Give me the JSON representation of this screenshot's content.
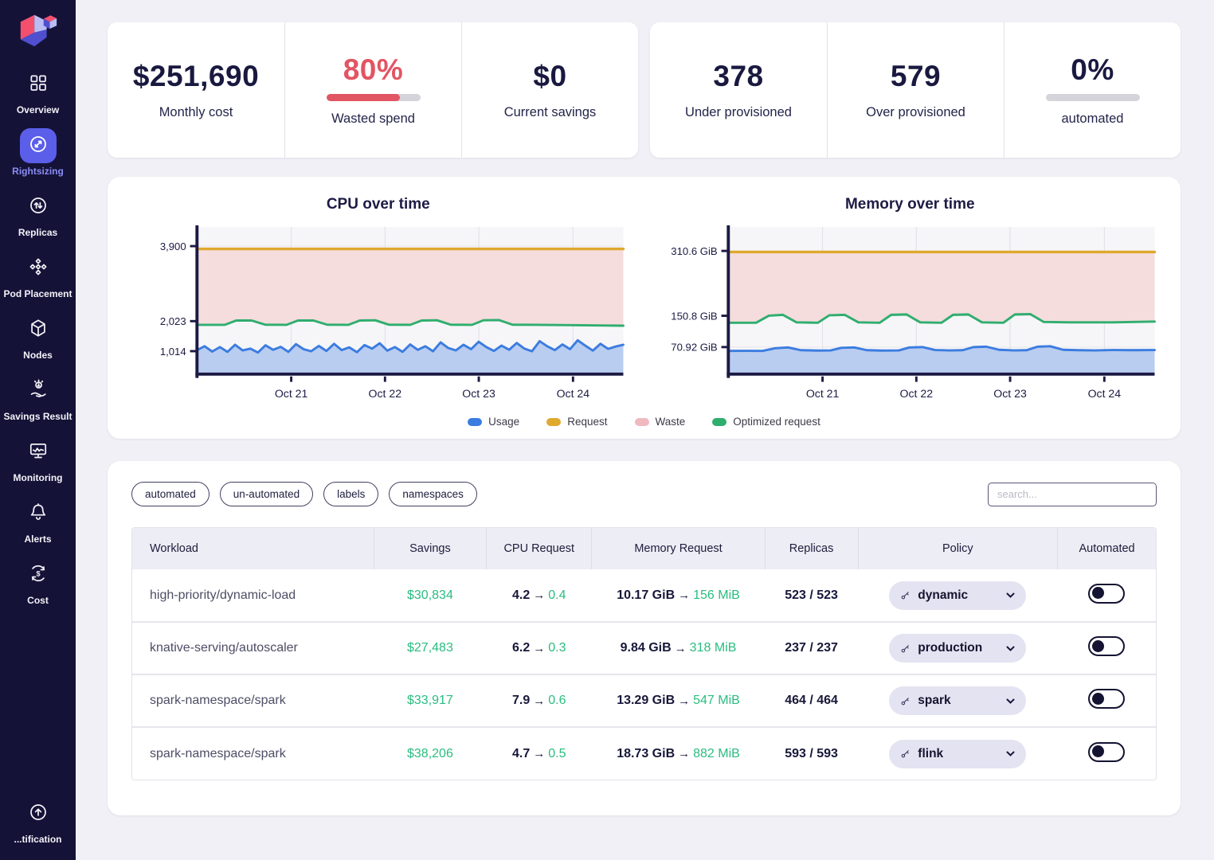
{
  "colors": {
    "sidebar_bg": "#151238",
    "active_item": "#5a5ee8",
    "active_label": "#8a8df5",
    "accent_red": "#e25563",
    "green": "#29bd7f",
    "navy": "#191940",
    "usage_blue": "#3b7ce0",
    "request_gold": "#dfa92e",
    "waste_pink": "#f5dcdd",
    "optimized_green": "#2fae6e"
  },
  "sidebar": {
    "items": [
      {
        "label": "Overview",
        "icon": "overview-grid-icon",
        "active": false
      },
      {
        "label": "Rightsizing",
        "icon": "rightsizing-resize-icon",
        "active": true
      },
      {
        "label": "Replicas",
        "icon": "replicas-arrows-icon",
        "active": false
      },
      {
        "label": "Pod Placement",
        "icon": "pod-placement-cubes-icon",
        "active": false
      },
      {
        "label": "Nodes",
        "icon": "nodes-cube-icon",
        "active": false
      },
      {
        "label": "Savings Result",
        "icon": "savings-hand-coin-icon",
        "active": false
      },
      {
        "label": "Monitoring",
        "icon": "monitoring-screen-icon",
        "active": false
      },
      {
        "label": "Alerts",
        "icon": "alerts-bell-icon",
        "active": false
      },
      {
        "label": "Cost",
        "icon": "cost-dollar-cycle-icon",
        "active": false
      },
      {
        "label": "...tification",
        "icon": "notification-arrow-up-icon",
        "active": false,
        "pinned_bottom": true
      }
    ]
  },
  "stats": {
    "groups": [
      {
        "cards": [
          {
            "value": "$251,690",
            "label": "Monthly cost"
          },
          {
            "value": "80%",
            "label": "Wasted spend",
            "value_color": "red",
            "progress_pct": 78
          },
          {
            "value": "$0",
            "label": "Current savings"
          }
        ]
      },
      {
        "cards": [
          {
            "value": "378",
            "label": "Under provisioned"
          },
          {
            "value": "579",
            "label": "Over provisioned"
          },
          {
            "value": "0%",
            "label": "automated",
            "progress_pct": 0
          }
        ]
      }
    ]
  },
  "chart_data": [
    {
      "type": "area",
      "title": "CPU over time",
      "yticks": [
        {
          "label": "1,014",
          "value": 1014,
          "pos": 0.147
        },
        {
          "label": "2,023",
          "value": 2023,
          "pos": 0.353
        },
        {
          "label": "3,900",
          "value": 3900,
          "pos": 0.868
        }
      ],
      "xticks": [
        {
          "label": "Oct 21",
          "pos": 0.221
        },
        {
          "label": "Oct 22",
          "pos": 0.441
        },
        {
          "label": "Oct 23",
          "pos": 0.661
        },
        {
          "label": "Oct 24",
          "pos": 0.882
        }
      ],
      "hgrid": [
        0.147,
        0.353,
        0.48,
        0.74,
        0.868
      ],
      "waste": {
        "between": [
          "Request",
          "Optimized request"
        ],
        "color": "#f5dcdd"
      },
      "series": [
        {
          "name": "Request",
          "color": "#dfa92e",
          "width": 3.5,
          "points": [
            [
              0,
              3830
            ],
            [
              1,
              3830
            ]
          ]
        },
        {
          "name": "Optimized request",
          "color": "#2fae6e",
          "width": 3,
          "points": [
            [
              0,
              1900
            ],
            [
              0.065,
              1900
            ],
            [
              0.092,
              2040
            ],
            [
              0.128,
              2040
            ],
            [
              0.16,
              1905
            ],
            [
              0.21,
              1900
            ],
            [
              0.237,
              2040
            ],
            [
              0.273,
              2040
            ],
            [
              0.305,
              1905
            ],
            [
              0.355,
              1900
            ],
            [
              0.382,
              2040
            ],
            [
              0.418,
              2045
            ],
            [
              0.45,
              1905
            ],
            [
              0.5,
              1900
            ],
            [
              0.527,
              2040
            ],
            [
              0.563,
              2045
            ],
            [
              0.595,
              1905
            ],
            [
              0.645,
              1900
            ],
            [
              0.672,
              2045
            ],
            [
              0.708,
              2050
            ],
            [
              0.74,
              1905
            ],
            [
              0.8,
              1900
            ],
            [
              0.9,
              1885
            ],
            [
              1,
              1870
            ]
          ]
        },
        {
          "name": "Usage",
          "color": "#3b7ce0",
          "width": 3,
          "fill": "#b9cdf1",
          "x_uniform": true,
          "values": [
            1050,
            1180,
            1000,
            1150,
            990,
            1230,
            1040,
            1100,
            970,
            1210,
            1060,
            1160,
            990,
            1250,
            1080,
            1010,
            1190,
            1020,
            1260,
            1050,
            1140,
            980,
            1220,
            1100,
            1280,
            1030,
            1150,
            990,
            1240,
            1060,
            1180,
            1010,
            1310,
            1120,
            1040,
            1230,
            1080,
            1330,
            1150,
            1020,
            1200,
            1060,
            1290,
            1100,
            1010,
            1350,
            1180,
            1050,
            1240,
            1080,
            1380,
            1200,
            1030,
            1260,
            1090,
            1170,
            1230
          ]
        }
      ]
    },
    {
      "type": "area",
      "title": "Memory over time",
      "yticks": [
        {
          "label": "70.92 GiB",
          "value": 70.92,
          "pos": 0.175
        },
        {
          "label": "150.8 GiB",
          "value": 150.8,
          "pos": 0.39
        },
        {
          "label": "310.6 GiB",
          "value": 310.6,
          "pos": 0.835
        }
      ],
      "xticks": [
        {
          "label": "Oct 21",
          "pos": 0.221
        },
        {
          "label": "Oct 22",
          "pos": 0.441
        },
        {
          "label": "Oct 23",
          "pos": 0.661
        },
        {
          "label": "Oct 24",
          "pos": 0.882
        }
      ],
      "hgrid": [
        0.175,
        0.39,
        0.48,
        0.645,
        0.835
      ],
      "waste": {
        "between": [
          "Request",
          "Optimized request"
        ],
        "color": "#f5dcdd"
      },
      "series": [
        {
          "name": "Request",
          "color": "#dfa92e",
          "width": 3.5,
          "points": [
            [
              0,
              308
            ],
            [
              1,
              308
            ]
          ]
        },
        {
          "name": "Optimized request",
          "color": "#2fae6e",
          "width": 3,
          "points": [
            [
              0,
              133
            ],
            [
              0.065,
              133
            ],
            [
              0.095,
              151
            ],
            [
              0.128,
              153
            ],
            [
              0.16,
              134
            ],
            [
              0.21,
              133
            ],
            [
              0.237,
              152
            ],
            [
              0.273,
              153
            ],
            [
              0.305,
              134
            ],
            [
              0.355,
              133
            ],
            [
              0.382,
              153
            ],
            [
              0.418,
              154
            ],
            [
              0.45,
              134
            ],
            [
              0.5,
              133
            ],
            [
              0.527,
              153
            ],
            [
              0.563,
              154
            ],
            [
              0.595,
              134
            ],
            [
              0.645,
              133
            ],
            [
              0.672,
              154
            ],
            [
              0.708,
              155
            ],
            [
              0.74,
              135
            ],
            [
              0.8,
              134
            ],
            [
              0.9,
              134
            ],
            [
              1,
              136
            ]
          ]
        },
        {
          "name": "Usage",
          "color": "#3b7ce0",
          "width": 3,
          "fill": "#b9cdf1",
          "points": [
            [
              0,
              61
            ],
            [
              0.04,
              61.5
            ],
            [
              0.08,
              61
            ],
            [
              0.11,
              68
            ],
            [
              0.14,
              70
            ],
            [
              0.17,
              63
            ],
            [
              0.21,
              62
            ],
            [
              0.24,
              62.5
            ],
            [
              0.265,
              69
            ],
            [
              0.295,
              70
            ],
            [
              0.325,
              63
            ],
            [
              0.36,
              62
            ],
            [
              0.4,
              62.5
            ],
            [
              0.425,
              70
            ],
            [
              0.455,
              71
            ],
            [
              0.485,
              63.5
            ],
            [
              0.52,
              62.5
            ],
            [
              0.55,
              63
            ],
            [
              0.575,
              71
            ],
            [
              0.605,
              72
            ],
            [
              0.635,
              64
            ],
            [
              0.67,
              62.5
            ],
            [
              0.7,
              63
            ],
            [
              0.725,
              72
            ],
            [
              0.755,
              73
            ],
            [
              0.785,
              64
            ],
            [
              0.82,
              63
            ],
            [
              0.86,
              62.5
            ],
            [
              0.9,
              63.5
            ],
            [
              0.95,
              63
            ],
            [
              1,
              63.5
            ]
          ]
        }
      ]
    }
  ],
  "legend": [
    {
      "label": "Usage",
      "color": "#3b7ce0"
    },
    {
      "label": "Request",
      "color": "#dfa92e"
    },
    {
      "label": "Waste",
      "color": "#f0b9c0"
    },
    {
      "label": "Optimized request",
      "color": "#2fae6e"
    }
  ],
  "table_card": {
    "filters": [
      "automated",
      "un-automated",
      "labels",
      "namespaces"
    ],
    "search_placeholder": "search...",
    "columns": [
      "Workload",
      "Savings",
      "CPU Request",
      "Memory Request",
      "Replicas",
      "Policy",
      "Automated"
    ],
    "rows": [
      {
        "workload": "high-priority/dynamic-load",
        "savings": "$30,834",
        "cpu_from": "4.2",
        "cpu_to": "0.4",
        "mem_from": "10.17 GiB",
        "mem_to": "156 MiB",
        "replicas": "523 / 523",
        "policy": "dynamic",
        "automated": false
      },
      {
        "workload": "knative-serving/autoscaler",
        "savings": "$27,483",
        "cpu_from": "6.2",
        "cpu_to": "0.3",
        "mem_from": "9.84 GiB",
        "mem_to": "318 MiB",
        "replicas": "237 / 237",
        "policy": "production",
        "automated": false
      },
      {
        "workload": "spark-namespace/spark",
        "savings": "$33,917",
        "cpu_from": "7.9",
        "cpu_to": "0.6",
        "mem_from": "13.29 GiB",
        "mem_to": "547 MiB",
        "replicas": "464 / 464",
        "policy": "spark",
        "automated": false
      },
      {
        "workload": "spark-namespace/spark",
        "savings": "$38,206",
        "cpu_from": "4.7",
        "cpu_to": "0.5",
        "mem_from": "18.73 GiB",
        "mem_to": "882 MiB",
        "replicas": "593 / 593",
        "policy": "flink",
        "automated": false
      }
    ]
  }
}
